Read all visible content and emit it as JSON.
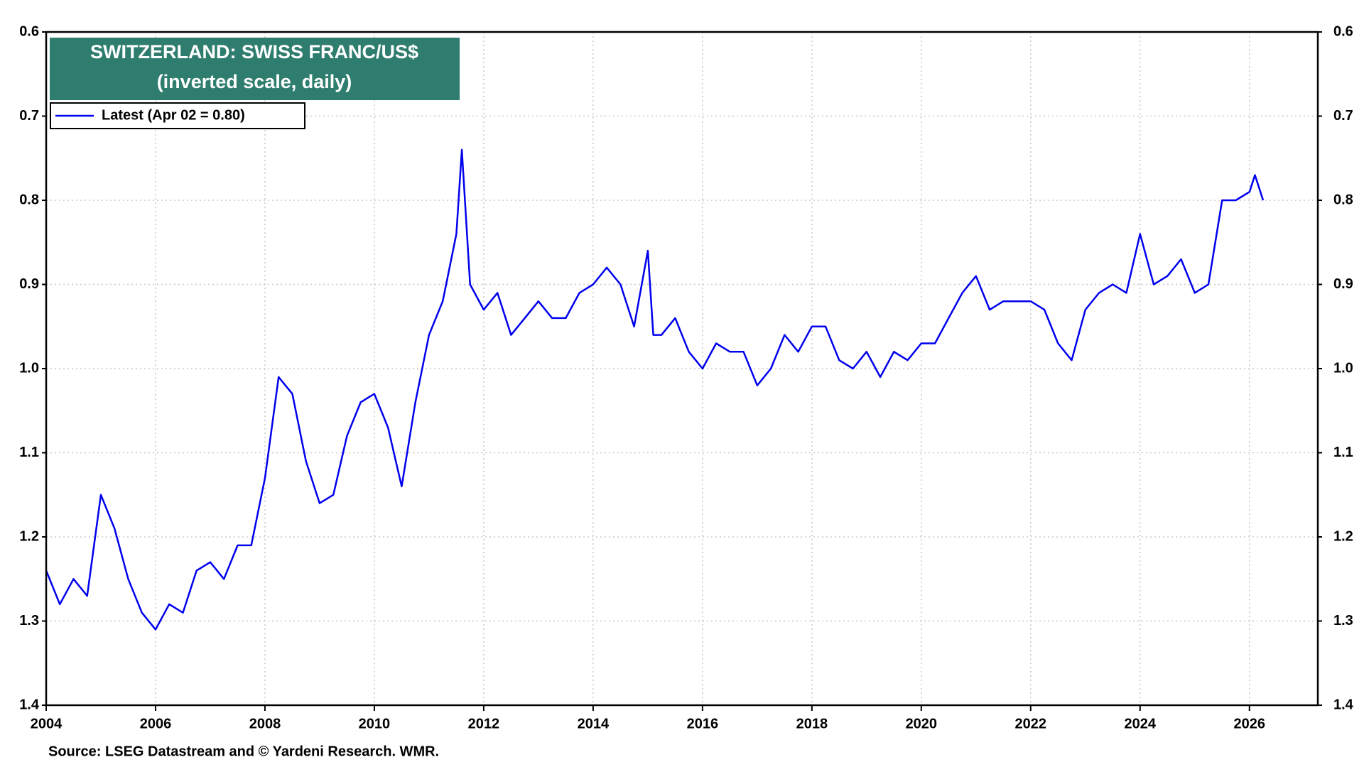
{
  "chart_data": {
    "type": "line",
    "title": "SWITZERLAND: SWISS FRANC/US$",
    "subtitle": "(inverted scale, daily)",
    "source": "Source: LSEG Datastream and © Yardeni Research. WMR.",
    "x": [
      2004.0,
      2004.25,
      2004.5,
      2004.75,
      2005.0,
      2005.25,
      2005.5,
      2005.75,
      2006.0,
      2006.25,
      2006.5,
      2006.75,
      2007.0,
      2007.25,
      2007.5,
      2007.75,
      2008.0,
      2008.25,
      2008.5,
      2008.75,
      2009.0,
      2009.25,
      2009.5,
      2009.75,
      2010.0,
      2010.25,
      2010.5,
      2010.75,
      2011.0,
      2011.25,
      2011.5,
      2011.6,
      2011.75,
      2012.0,
      2012.25,
      2012.5,
      2012.75,
      2013.0,
      2013.25,
      2013.5,
      2013.75,
      2014.0,
      2014.25,
      2014.5,
      2014.75,
      2015.0,
      2015.1,
      2015.25,
      2015.5,
      2015.75,
      2016.0,
      2016.25,
      2016.5,
      2016.75,
      2017.0,
      2017.25,
      2017.5,
      2017.75,
      2018.0,
      2018.25,
      2018.5,
      2018.75,
      2019.0,
      2019.25,
      2019.5,
      2019.75,
      2020.0,
      2020.25,
      2020.5,
      2020.75,
      2021.0,
      2021.25,
      2021.5,
      2021.75,
      2022.0,
      2022.25,
      2022.5,
      2022.75,
      2023.0,
      2023.25,
      2023.5,
      2023.75,
      2024.0,
      2024.25,
      2024.5,
      2024.75,
      2025.0,
      2025.25,
      2025.5,
      2025.75,
      2026.0,
      2026.1,
      2026.25
    ],
    "series": [
      {
        "name": "Latest (Apr 02 = 0.80)",
        "color": "#0000ee",
        "values": [
          1.24,
          1.28,
          1.25,
          1.27,
          1.15,
          1.19,
          1.25,
          1.29,
          1.31,
          1.28,
          1.29,
          1.24,
          1.23,
          1.25,
          1.21,
          1.21,
          1.13,
          1.01,
          1.03,
          1.11,
          1.16,
          1.15,
          1.08,
          1.04,
          1.03,
          1.07,
          1.14,
          1.04,
          0.96,
          0.92,
          0.84,
          0.74,
          0.9,
          0.93,
          0.91,
          0.96,
          0.94,
          0.92,
          0.94,
          0.94,
          0.91,
          0.9,
          0.88,
          0.9,
          0.95,
          0.86,
          0.96,
          0.96,
          0.94,
          0.98,
          1.0,
          0.97,
          0.98,
          0.98,
          1.02,
          1.0,
          0.96,
          0.98,
          0.95,
          0.95,
          0.99,
          1.0,
          0.98,
          1.01,
          0.98,
          0.99,
          0.97,
          0.97,
          0.94,
          0.91,
          0.89,
          0.93,
          0.92,
          0.92,
          0.92,
          0.93,
          0.97,
          0.99,
          0.93,
          0.91,
          0.9,
          0.91,
          0.84,
          0.9,
          0.89,
          0.87,
          0.91,
          0.9,
          0.8,
          0.8,
          0.79,
          0.77,
          0.8
        ]
      }
    ],
    "xlim": [
      2004,
      2027.25
    ],
    "xticks": [
      2004,
      2006,
      2008,
      2010,
      2012,
      2014,
      2016,
      2018,
      2020,
      2022,
      2024,
      2026
    ],
    "ylim": [
      0.6,
      1.4
    ],
    "yticks": [
      0.6,
      0.7,
      0.8,
      0.9,
      {
        "value": 1,
        "label": "1.0"
      },
      1.1,
      1.2,
      1.3,
      1.4
    ],
    "y_inverted": true,
    "grid": true
  }
}
